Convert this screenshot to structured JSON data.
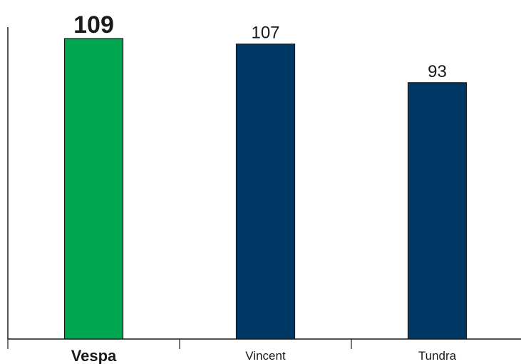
{
  "chart_data": {
    "type": "bar",
    "categories": [
      "Vespa",
      "Vincent",
      "Tundra"
    ],
    "values": [
      109,
      107,
      93
    ],
    "highlight_index": 0,
    "title": "",
    "xlabel": "",
    "ylabel": "",
    "ylim": [
      0,
      109
    ],
    "grid": false,
    "colors": {
      "highlight": "#00a650",
      "default": "#003865"
    }
  }
}
